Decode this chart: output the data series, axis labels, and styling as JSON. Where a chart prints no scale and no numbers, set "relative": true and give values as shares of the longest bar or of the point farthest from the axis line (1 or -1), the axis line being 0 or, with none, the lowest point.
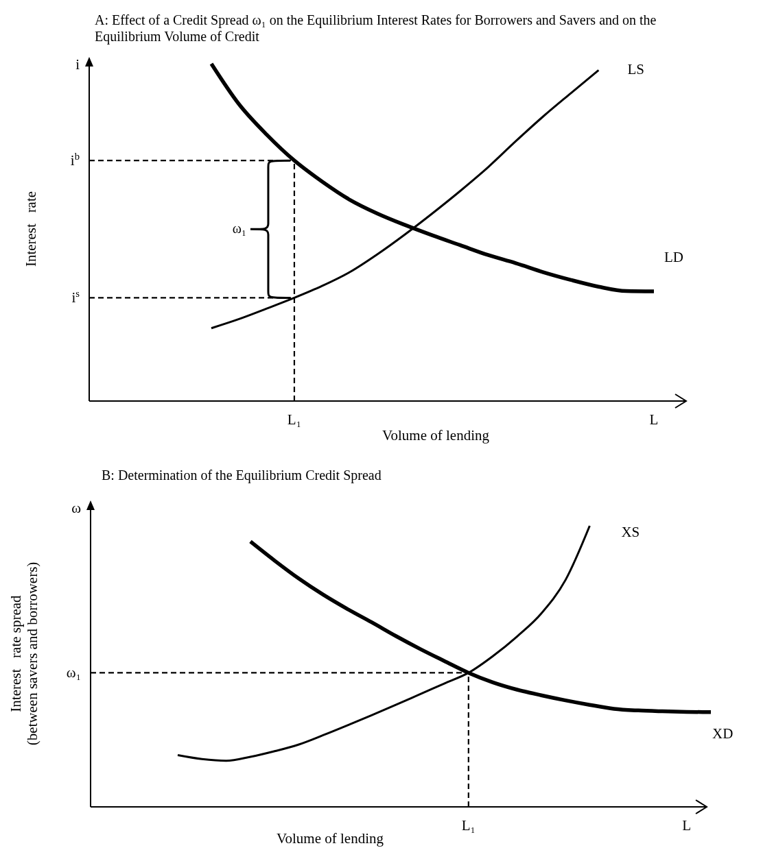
{
  "chart_data": [
    {
      "type": "line",
      "title": "A: Effect of a Credit Spread ω₁ on the Equilibrium Interest Rates for Borrowers and Savers and on the Equilibrium Volume of Credit",
      "xlabel": "Volume of lending",
      "ylabel": "Interest   rate",
      "relative": true,
      "categories": [
        null,
        null,
        null,
        "L₁",
        null,
        null,
        null,
        null,
        null,
        null,
        null,
        null,
        null,
        null,
        null,
        null,
        "L"
      ],
      "series": [
        {
          "name": "LD",
          "color": "#000000",
          "values": [
            1,
            0.88,
            0.79,
            0.713,
            0.651,
            0.597,
            0.556,
            0.522,
            0.491,
            0.462,
            0.433,
            0.409,
            0.382,
            0.359,
            0.339,
            0.326,
            0.325
          ]
        },
        {
          "name": "LS",
          "color": "#000000",
          "values": [
            0.216,
            0.243,
            0.274,
            0.306,
            0.341,
            0.382,
            0.435,
            0.494,
            0.557,
            0.623,
            0.693,
            0.77,
            0.844,
            0.913,
            0.981,
            null,
            null
          ]
        }
      ],
      "ref_lines": [
        {
          "axis": "y",
          "value": 0.713,
          "label": "i$^{b}$",
          "line_style": "dashed"
        },
        {
          "axis": "y",
          "value": 0.306,
          "label": "i$^{s}$",
          "line_style": "dashed"
        },
        {
          "axis": "x",
          "value": "L₁",
          "line_style": "dashed"
        }
      ],
      "annotations": [
        "i",
        "ω₁"
      ],
      "legend": false,
      "grid": false,
      "marker": "none"
    },
    {
      "type": "line",
      "title": "B: Determination of the Equilibrium Credit Spread",
      "xlabel": "Volume of lending",
      "ylabel": "Interest   rate spread\n(between savers and borrowers)",
      "relative": true,
      "categories": [
        null,
        null,
        null,
        null,
        null,
        null,
        null,
        null,
        null,
        null,
        null,
        null,
        "L₁",
        null,
        null,
        null,
        null,
        null,
        null,
        null,
        null,
        "L",
        null
      ],
      "series": [
        {
          "name": "XD",
          "color": "#000000",
          "values": [
            null,
            null,
            null,
            0.944,
            0.876,
            0.812,
            0.755,
            0.704,
            0.657,
            0.608,
            0.562,
            0.519,
            0.477,
            0.443,
            0.417,
            0.397,
            0.379,
            0.363,
            0.349,
            0.343,
            0.34,
            0.338,
            0.337
          ]
        },
        {
          "name": "XS",
          "color": "#000000",
          "values": [
            0.184,
            0.17,
            0.164,
            0.178,
            0.198,
            0.222,
            0.255,
            0.29,
            0.326,
            0.363,
            0.401,
            0.439,
            0.477,
            0.536,
            0.606,
            0.688,
            0.807,
            1,
            null,
            null,
            null,
            null,
            null
          ]
        }
      ],
      "ref_lines": [
        {
          "axis": "y",
          "value": 0.477,
          "label": "ω₁",
          "line_style": "dashed"
        },
        {
          "axis": "x",
          "value": "L₁",
          "line_style": "dashed"
        }
      ],
      "annotations": [
        "ω"
      ],
      "legend": false,
      "grid": false,
      "marker": "none"
    }
  ]
}
